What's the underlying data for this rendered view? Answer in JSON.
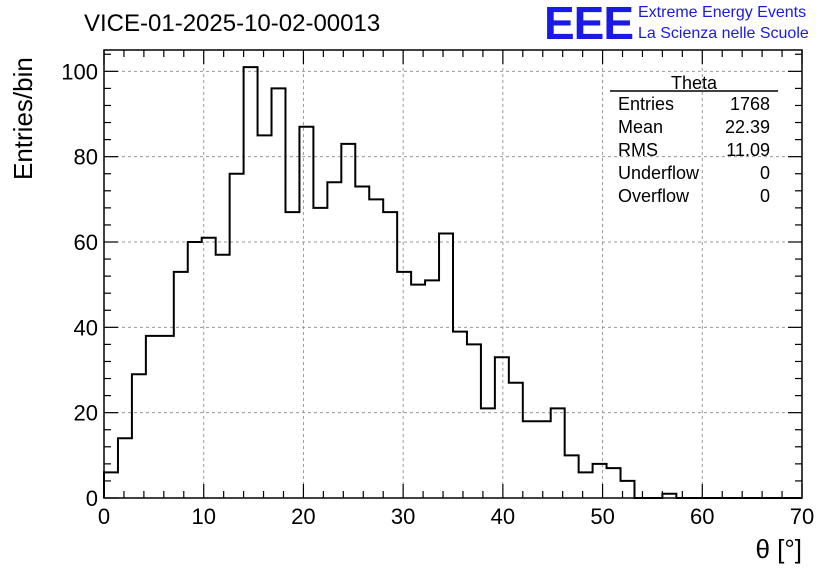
{
  "header": {
    "title": "VICE-01-2025-10-02-00013",
    "logo_text": "EEE",
    "logo_line1": "Extreme Energy Events",
    "logo_line2": "La Scienza nelle Scuole"
  },
  "stats": {
    "name": "Theta",
    "rows": [
      {
        "label": "Entries",
        "value": "1768"
      },
      {
        "label": "Mean",
        "value": "22.39"
      },
      {
        "label": "RMS",
        "value": "11.09"
      },
      {
        "label": "Underflow",
        "value": "0"
      },
      {
        "label": "Overflow",
        "value": "0"
      }
    ]
  },
  "colors": {
    "logo": "#1a1ae6",
    "histogram": "#000000",
    "grid": "#9a9a9a"
  },
  "chart_data": {
    "type": "histogram",
    "xlabel": "θ [°]",
    "ylabel": "Entries/bin",
    "xlim": [
      0,
      70
    ],
    "ylim": [
      0,
      105
    ],
    "grid": true,
    "bin_width": 1.4,
    "xticks": [
      0,
      10,
      20,
      30,
      40,
      50,
      60,
      70
    ],
    "yticks": [
      0,
      20,
      40,
      60,
      80,
      100
    ],
    "values": [
      6,
      14,
      29,
      38,
      38,
      53,
      60,
      61,
      57,
      76,
      101,
      85,
      96,
      67,
      87,
      68,
      74,
      83,
      73,
      70,
      67,
      53,
      50,
      51,
      62,
      39,
      36,
      21,
      33,
      27,
      18,
      18,
      21,
      10,
      6,
      8,
      7,
      4,
      0,
      0,
      1,
      0,
      0,
      0,
      0,
      0,
      0,
      0,
      0,
      0
    ]
  }
}
